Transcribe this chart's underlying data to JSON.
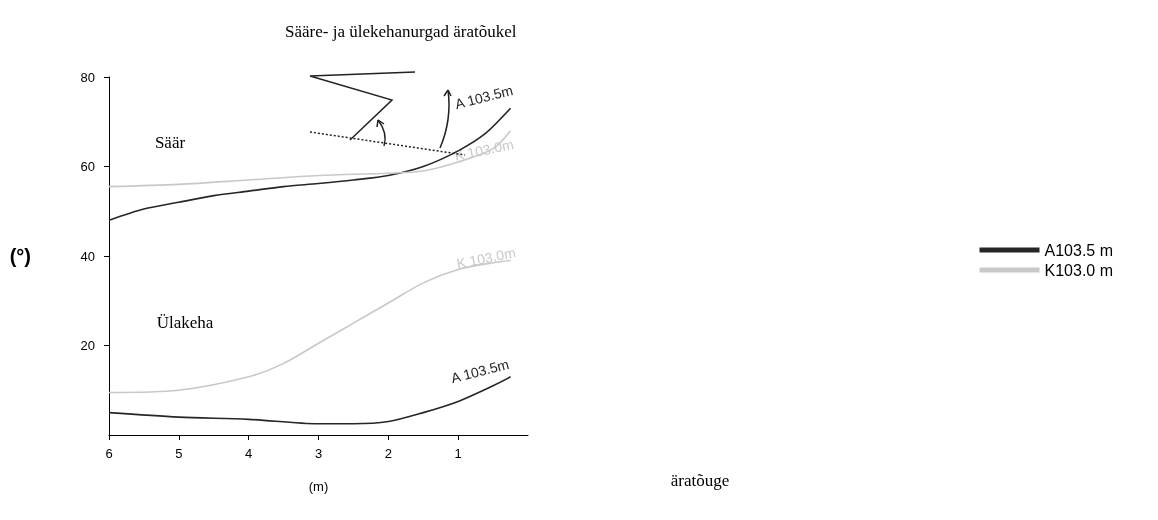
{
  "chart_data": {
    "type": "line",
    "title": "Sääre- ja ülekehanurgad äratõukel",
    "xlabel": "(m)",
    "ylabel": "(°)",
    "xlim": [
      6,
      0
    ],
    "xticks": [
      6,
      5,
      4,
      3,
      2,
      1
    ],
    "ylim": [
      0,
      80
    ],
    "yticks": [
      20,
      40,
      60,
      80
    ],
    "grid": false,
    "legend": "right",
    "marker": "none",
    "line_style": "solid",
    "series": [
      {
        "name": "A103.5 m",
        "color": "#262626",
        "x": [
          6,
          5.5,
          5,
          4.5,
          4,
          3.5,
          3,
          2.5,
          2,
          1.5,
          1,
          0.6,
          0.25
        ],
        "values": [
          48,
          50.5,
          52,
          53.5,
          54.5,
          55.5,
          56.2,
          57,
          58,
          60,
          63.5,
          67.5,
          73
        ]
      },
      {
        "name": "K103.0 m",
        "color": "#c8c8c8",
        "x": [
          6,
          5,
          4,
          3,
          2,
          1.5,
          1,
          0.5,
          0.25
        ],
        "values": [
          55.5,
          56,
          57,
          58,
          58.5,
          59,
          61,
          64,
          68
        ]
      },
      {
        "color": "#c8c8c8",
        "x": [
          6,
          5,
          4,
          3.5,
          3,
          2.5,
          2,
          1.5,
          1,
          0.5,
          0.25
        ],
        "values": [
          9.5,
          10,
          13,
          16,
          20.5,
          25,
          29.5,
          34,
          37,
          38.5,
          39
        ]
      },
      {
        "color": "#262626",
        "x": [
          6,
          5,
          4,
          3,
          2.5,
          2,
          1.5,
          1,
          0.5,
          0.25
        ],
        "values": [
          5,
          4,
          3.5,
          2.5,
          2.5,
          3,
          5,
          7.5,
          11,
          13
        ]
      }
    ],
    "annotations": [
      "A 103.5m",
      "K 103.0m",
      "K 103.0m",
      "A 103.5m",
      "Säär",
      "Ülakeha",
      "äratõuge"
    ]
  }
}
